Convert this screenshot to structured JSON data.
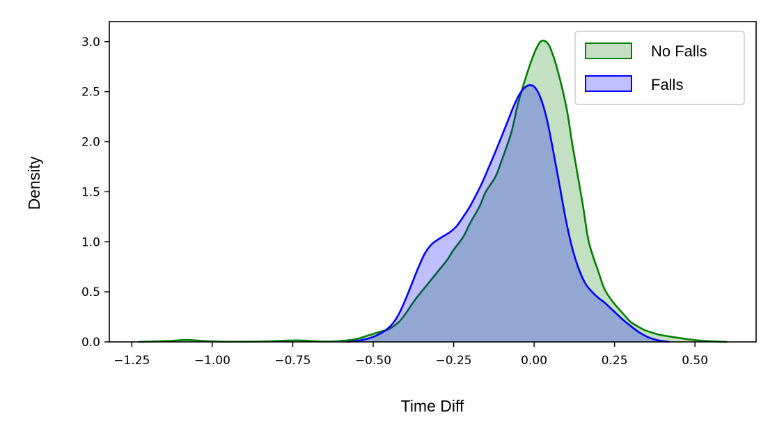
{
  "chart_data": {
    "type": "area",
    "title": "",
    "xlabel": "Time Diff",
    "ylabel": "Density",
    "xlim": [
      -1.32,
      0.69
    ],
    "ylim": [
      0.0,
      3.2
    ],
    "xticks": [
      -1.25,
      -1.0,
      -0.75,
      -0.5,
      -0.25,
      0.0,
      0.25,
      0.5
    ],
    "xtick_labels": [
      "−1.25",
      "−1.00",
      "−0.75",
      "−0.50",
      "−0.25",
      "0.00",
      "0.25",
      "0.50"
    ],
    "yticks": [
      0.0,
      0.5,
      1.0,
      1.5,
      2.0,
      2.5,
      3.0
    ],
    "ytick_labels": [
      "0.0",
      "0.5",
      "1.0",
      "1.5",
      "2.0",
      "2.5",
      "3.0"
    ],
    "grid": false,
    "legend_position": "top-right",
    "series": [
      {
        "name": "No Falls",
        "color": "#008000",
        "fill": "#c3e0c3",
        "x": [
          -1.23,
          -1.18,
          -1.13,
          -1.08,
          -1.03,
          -0.98,
          -0.93,
          -0.88,
          -0.83,
          -0.78,
          -0.73,
          -0.68,
          -0.63,
          -0.58,
          -0.55,
          -0.52,
          -0.5,
          -0.48,
          -0.45,
          -0.42,
          -0.4,
          -0.37,
          -0.33,
          -0.3,
          -0.27,
          -0.25,
          -0.22,
          -0.2,
          -0.17,
          -0.15,
          -0.12,
          -0.1,
          -0.07,
          -0.05,
          -0.02,
          0.0,
          0.01,
          0.02,
          0.03,
          0.04,
          0.05,
          0.07,
          0.1,
          0.12,
          0.15,
          0.17,
          0.2,
          0.22,
          0.25,
          0.28,
          0.3,
          0.33,
          0.35,
          0.38,
          0.4,
          0.45,
          0.5,
          0.55,
          0.6
        ],
        "y": [
          0.0,
          0.005,
          0.01,
          0.02,
          0.01,
          0.003,
          0.002,
          0.003,
          0.005,
          0.012,
          0.015,
          0.007,
          0.004,
          0.015,
          0.03,
          0.06,
          0.08,
          0.1,
          0.13,
          0.2,
          0.28,
          0.42,
          0.58,
          0.7,
          0.82,
          0.92,
          1.05,
          1.18,
          1.35,
          1.5,
          1.65,
          1.82,
          2.1,
          2.38,
          2.7,
          2.88,
          2.95,
          3.0,
          3.01,
          2.99,
          2.94,
          2.75,
          2.35,
          1.95,
          1.4,
          1.0,
          0.7,
          0.52,
          0.38,
          0.27,
          0.2,
          0.14,
          0.11,
          0.08,
          0.065,
          0.04,
          0.018,
          0.006,
          0.0
        ]
      },
      {
        "name": "Falls",
        "color": "#0000ff",
        "fill": "#c0c0ff",
        "x": [
          -0.58,
          -0.55,
          -0.52,
          -0.5,
          -0.48,
          -0.46,
          -0.44,
          -0.42,
          -0.4,
          -0.38,
          -0.36,
          -0.34,
          -0.32,
          -0.3,
          -0.28,
          -0.26,
          -0.24,
          -0.22,
          -0.2,
          -0.18,
          -0.16,
          -0.14,
          -0.12,
          -0.1,
          -0.08,
          -0.06,
          -0.04,
          -0.02,
          0.0,
          0.02,
          0.04,
          0.06,
          0.08,
          0.1,
          0.12,
          0.14,
          0.16,
          0.18,
          0.2,
          0.22,
          0.24,
          0.26,
          0.28,
          0.3,
          0.32,
          0.34,
          0.36,
          0.38,
          0.4,
          0.42
        ],
        "y": [
          0.0,
          0.01,
          0.03,
          0.05,
          0.08,
          0.12,
          0.18,
          0.28,
          0.42,
          0.58,
          0.74,
          0.88,
          0.97,
          1.02,
          1.06,
          1.1,
          1.16,
          1.25,
          1.35,
          1.47,
          1.6,
          1.75,
          1.9,
          2.06,
          2.22,
          2.38,
          2.5,
          2.56,
          2.55,
          2.44,
          2.22,
          1.9,
          1.55,
          1.2,
          0.92,
          0.72,
          0.58,
          0.5,
          0.44,
          0.39,
          0.33,
          0.27,
          0.21,
          0.16,
          0.11,
          0.07,
          0.04,
          0.02,
          0.008,
          0.0
        ]
      }
    ]
  }
}
